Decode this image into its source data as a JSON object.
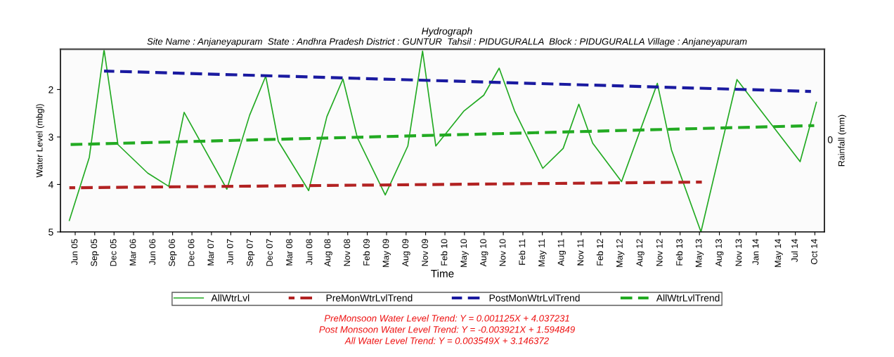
{
  "chart_data": {
    "type": "line",
    "title": "Hydrograph",
    "subtitle": "Site Name : Anjaneyapuram  State : Andhra Pradesh District : GUNTUR  Tahsil : PIDUGURALLA  Block : PIDUGURALLA Village : Anjaneyapuram",
    "xlabel": "Time",
    "ylabel": "Water Level (mbgl)",
    "y2label": "Rainfall (mm)",
    "xlim": [
      "2005-04-08",
      "2014-11-28"
    ],
    "xticks": [
      {
        "value": "2005-06-15",
        "label": "Jun 05"
      },
      {
        "value": "2005-09-13",
        "label": "Sep 05"
      },
      {
        "value": "2005-12-11",
        "label": "Dec 05"
      },
      {
        "value": "2006-03-11",
        "label": "Mar 06"
      },
      {
        "value": "2006-06-09",
        "label": "Jun 06"
      },
      {
        "value": "2006-09-07",
        "label": "Sep 06"
      },
      {
        "value": "2006-12-05",
        "label": "Dec 06"
      },
      {
        "value": "2007-03-05",
        "label": "Mar 07"
      },
      {
        "value": "2007-06-02",
        "label": "Jun 07"
      },
      {
        "value": "2007-09-01",
        "label": "Sep 07"
      },
      {
        "value": "2007-12-01",
        "label": "Dec 07"
      },
      {
        "value": "2008-03-01",
        "label": "Mar 08"
      },
      {
        "value": "2008-06-01",
        "label": "Jun 08"
      },
      {
        "value": "2008-08-24",
        "label": "Aug 08"
      },
      {
        "value": "2008-11-22",
        "label": "Nov 08"
      },
      {
        "value": "2009-02-20",
        "label": "Feb 09"
      },
      {
        "value": "2009-05-20",
        "label": "May 09"
      },
      {
        "value": "2009-08-18",
        "label": "Aug 09"
      },
      {
        "value": "2009-11-16",
        "label": "Nov 09"
      },
      {
        "value": "2010-02-13",
        "label": "Feb 10"
      },
      {
        "value": "2010-05-14",
        "label": "May 10"
      },
      {
        "value": "2010-08-12",
        "label": "Aug 10"
      },
      {
        "value": "2010-11-09",
        "label": "Nov 10"
      },
      {
        "value": "2011-02-07",
        "label": "Feb 11"
      },
      {
        "value": "2011-05-08",
        "label": "May 11"
      },
      {
        "value": "2011-08-05",
        "label": "Aug 11"
      },
      {
        "value": "2011-11-03",
        "label": "Nov 11"
      },
      {
        "value": "2012-02-01",
        "label": "Feb 12"
      },
      {
        "value": "2012-05-01",
        "label": "May 12"
      },
      {
        "value": "2012-08-01",
        "label": "Aug 12"
      },
      {
        "value": "2012-11-01",
        "label": "Nov 12"
      },
      {
        "value": "2013-02-01",
        "label": "Feb 13"
      },
      {
        "value": "2013-05-01",
        "label": "May 13"
      },
      {
        "value": "2013-08-01",
        "label": "Aug 13"
      },
      {
        "value": "2013-11-01",
        "label": "Nov 13"
      },
      {
        "value": "2014-01-18",
        "label": "Jan 14"
      },
      {
        "value": "2014-05-01",
        "label": "May 14"
      },
      {
        "value": "2014-07-17",
        "label": "Jul 14"
      },
      {
        "value": "2014-10-15",
        "label": "Oct 14"
      }
    ],
    "ylim": [
      5,
      1.15
    ],
    "yticks": [
      2,
      3,
      4,
      5
    ],
    "series": [
      {
        "name": "AllWtrLvl",
        "color": "#22aa22",
        "line_style": "solid",
        "x": [
          "2005-05-19",
          "2005-08-19",
          "2005-10-26",
          "2005-12-29",
          "2006-05-15",
          "2006-08-20",
          "2006-10-30",
          "2007-05-15",
          "2007-08-28",
          "2007-11-10",
          "2008-01-07",
          "2008-05-26",
          "2008-08-18",
          "2008-10-31",
          "2009-01-05",
          "2009-05-14",
          "2009-08-26",
          "2009-11-02",
          "2010-01-02",
          "2010-05-12",
          "2010-08-11",
          "2010-10-21",
          "2010-12-31",
          "2011-05-10",
          "2011-08-12",
          "2011-10-23",
          "2011-12-26",
          "2012-05-07",
          "2012-10-19",
          "2012-12-23",
          "2013-05-08",
          "2013-10-21",
          "2014-08-08",
          "2014-10-22"
        ],
        "values": [
          4.76,
          3.43,
          1.16,
          3.16,
          3.76,
          4.04,
          2.48,
          4.1,
          2.54,
          1.72,
          3.09,
          4.13,
          2.57,
          1.78,
          3.01,
          4.22,
          3.19,
          1.19,
          3.19,
          2.45,
          2.12,
          1.55,
          2.45,
          3.66,
          3.24,
          2.31,
          3.13,
          3.94,
          1.87,
          3.27,
          5.0,
          1.79,
          3.52,
          2.27
        ]
      },
      {
        "name": "PreMonWtrLvlTrend",
        "color": "#b22222",
        "line_style": "dashed",
        "x": [
          "2005-05-19",
          "2013-05-12"
        ],
        "values": [
          4.07,
          3.95
        ]
      },
      {
        "name": "PostMonWtrLvlTrend",
        "color": "#1a1aa0",
        "line_style": "dashed",
        "x": [
          "2005-10-26",
          "2014-09-27"
        ],
        "values": [
          1.61,
          2.04
        ]
      },
      {
        "name": "AllWtrLvlTrend",
        "color": "#22aa22",
        "line_style": "dashed",
        "x": [
          "2005-05-19",
          "2014-10-12"
        ],
        "values": [
          3.16,
          2.76
        ]
      }
    ],
    "legend": "bottom",
    "grid": false,
    "annotations": [
      "0",
      "PreMonsoon Water Level Trend: Y = 0.001125X + 4.037231",
      "Post Monsoon Water Level Trend: Y = -0.003921X + 1.594849",
      "All Water Level Trend: Y = 0.003549X + 3.146372"
    ]
  }
}
